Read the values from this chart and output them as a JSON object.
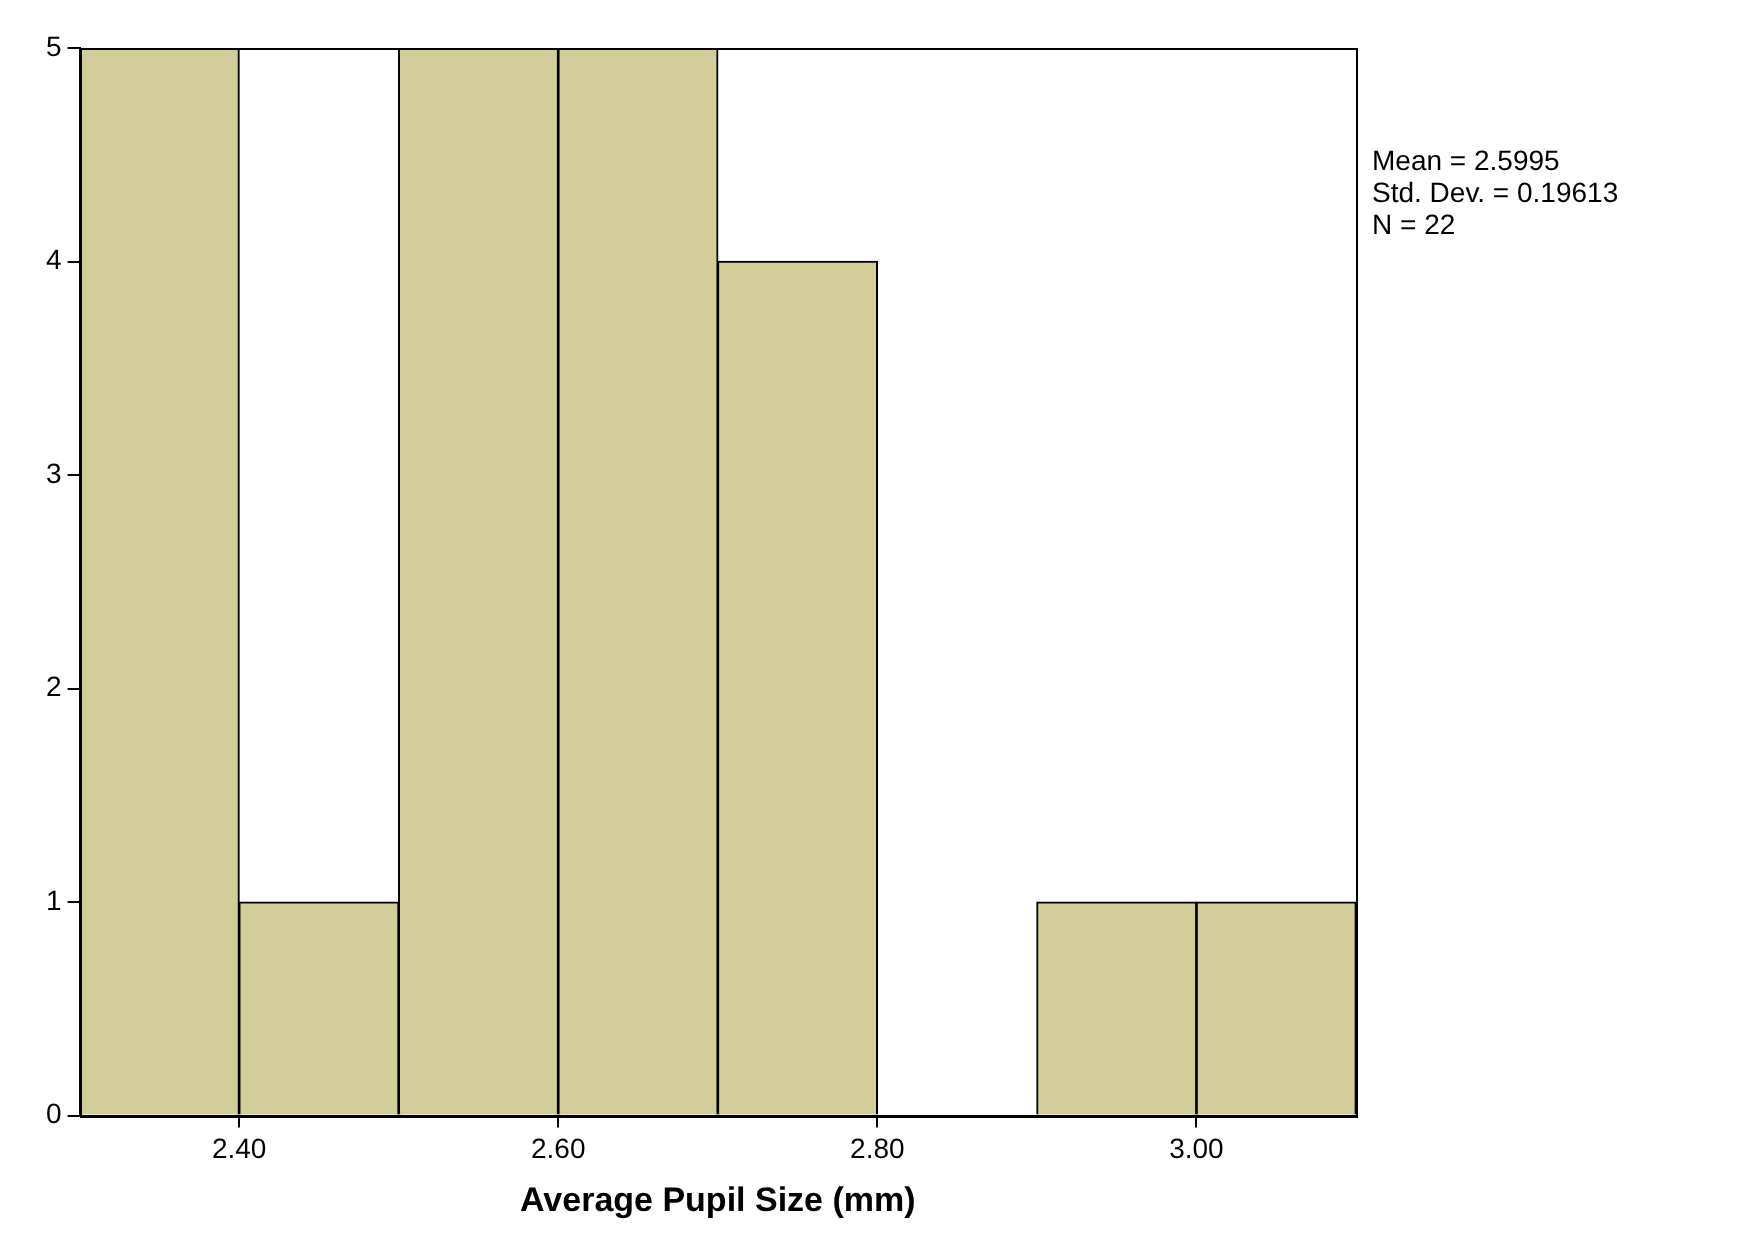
{
  "chart_data": {
    "type": "histogram",
    "xlabel": "Average Pupil Size (mm)",
    "bins": [
      2.3,
      2.4,
      2.5,
      2.6,
      2.7,
      2.8,
      2.9,
      3.0,
      3.1
    ],
    "values": [
      5,
      1,
      5,
      5,
      4,
      0,
      1,
      1
    ],
    "color": "#d3ce99",
    "xlim": [
      2.3,
      3.1
    ],
    "xticks": [
      {
        "value": 2.4,
        "label": "2.40"
      },
      {
        "value": 2.6,
        "label": "2.60"
      },
      {
        "value": 2.8,
        "label": "2.80"
      },
      {
        "value": 3.0,
        "label": "3.00"
      }
    ],
    "ylim": [
      0,
      5
    ],
    "yticks": [
      0,
      1,
      2,
      3,
      4,
      5
    ],
    "grid": false,
    "legend": false,
    "annotations": [
      "Mean = 2.5995",
      "Std. Dev. = 0.19613",
      "N = 22"
    ]
  }
}
